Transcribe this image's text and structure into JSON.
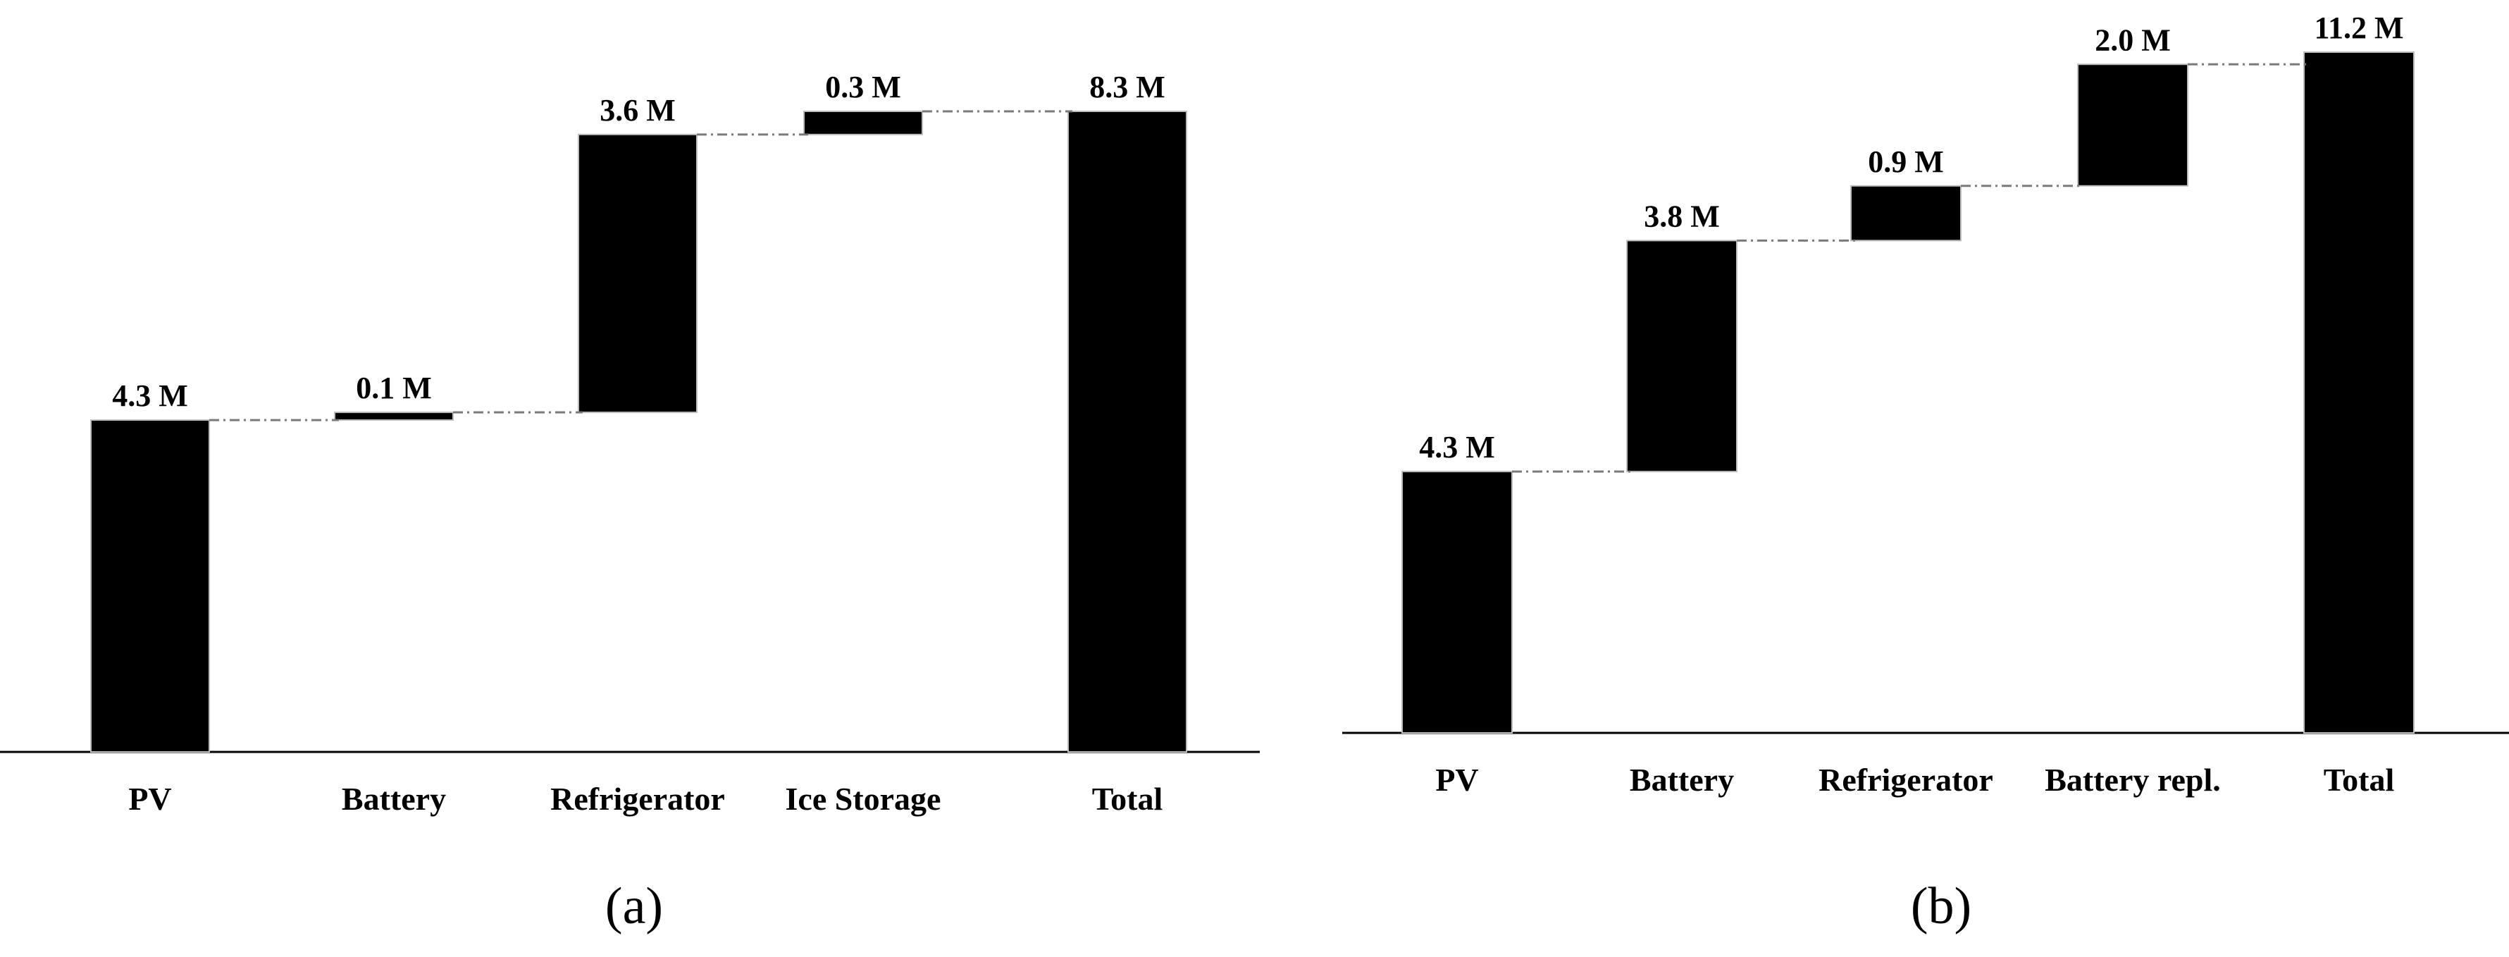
{
  "figure": {
    "panels": [
      {
        "label": "(a)"
      },
      {
        "label": "(b)"
      }
    ]
  },
  "chart_data": [
    {
      "type": "bar",
      "subtype": "waterfall",
      "title": "",
      "xlabel": "",
      "ylabel": "",
      "grid": false,
      "legend": "none",
      "ylim": [
        0,
        8.3
      ],
      "bar_color": "#000000",
      "categories": [
        "PV",
        "Battery",
        "Refrigerator",
        "Ice Storage",
        "Total"
      ],
      "values": [
        4.3,
        0.1,
        3.6,
        0.3,
        8.3
      ],
      "is_total": [
        false,
        false,
        false,
        false,
        true
      ],
      "value_labels": [
        "4.3 M",
        "0.1 M",
        "3.6 M",
        "0.3 M",
        "8.3 M"
      ]
    },
    {
      "type": "bar",
      "subtype": "waterfall",
      "title": "",
      "xlabel": "",
      "ylabel": "",
      "grid": false,
      "legend": "none",
      "ylim": [
        0,
        11.2
      ],
      "bar_color": "#000000",
      "categories": [
        "PV",
        "Battery",
        "Refrigerator",
        "Battery repl.",
        "Total"
      ],
      "values": [
        4.3,
        3.8,
        0.9,
        2.0,
        11.2
      ],
      "is_total": [
        false,
        false,
        false,
        false,
        true
      ],
      "value_labels": [
        "4.3 M",
        "3.8 M",
        "0.9 M",
        "2.0 M",
        "11.2 M"
      ]
    }
  ]
}
